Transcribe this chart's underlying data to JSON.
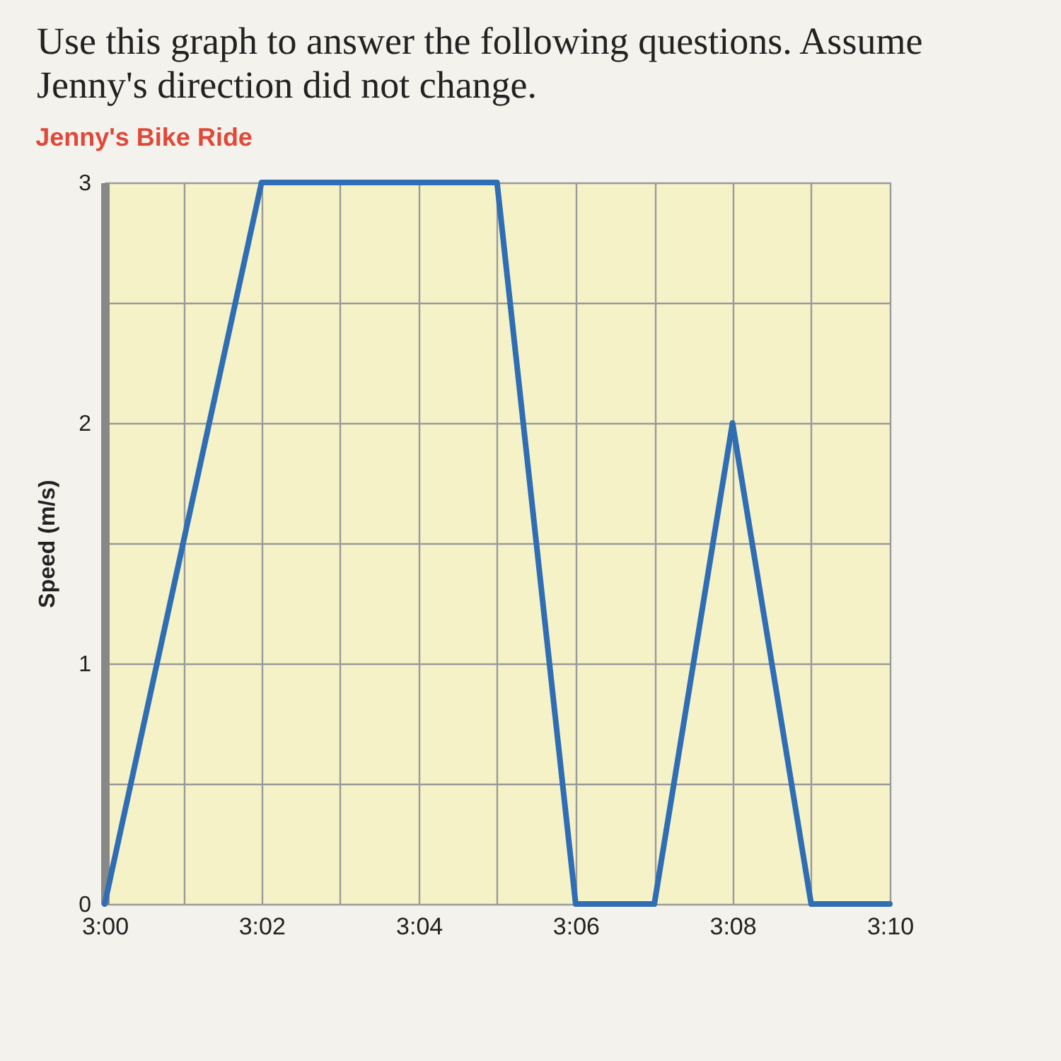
{
  "chart_data": {
    "type": "line",
    "title": "Jenny's Bike Ride",
    "ylabel": "Speed (m/s)",
    "annotations": [
      "Use this graph to answer the following questions. Assume Jenny's direction did not change."
    ],
    "x": [
      3,
      3.0333,
      3.0833,
      3.1,
      3.1167,
      3.1333,
      3.15,
      3.1667
    ],
    "series": [
      {
        "color": "#2f6db5",
        "values": [
          0,
          3,
          3,
          0,
          0,
          2,
          0,
          0
        ]
      }
    ],
    "xlim": [
      3,
      3.1667
    ],
    "xticks": [
      {
        "value": 3,
        "label": "3:00"
      },
      {
        "value": 3.0167,
        "label": null
      },
      {
        "value": 3.0333,
        "label": "3:02"
      },
      {
        "value": 3.05,
        "label": null
      },
      {
        "value": 3.0667,
        "label": "3:04"
      },
      {
        "value": 3.0833,
        "label": null
      },
      {
        "value": 3.1,
        "label": "3:06"
      },
      {
        "value": 3.1167,
        "label": null
      },
      {
        "value": 3.1333,
        "label": "3:08"
      },
      {
        "value": 3.15,
        "label": null
      },
      {
        "value": 3.1667,
        "label": "3:10"
      }
    ],
    "ylim": [
      0,
      3
    ],
    "yticks": [
      0,
      {
        "value": 0.5,
        "label": null
      },
      1,
      {
        "value": 1.5,
        "label": null
      },
      2,
      {
        "value": 2.5,
        "label": null
      },
      3
    ],
    "grid": true,
    "marker": "none",
    "line_style": "solid"
  }
}
